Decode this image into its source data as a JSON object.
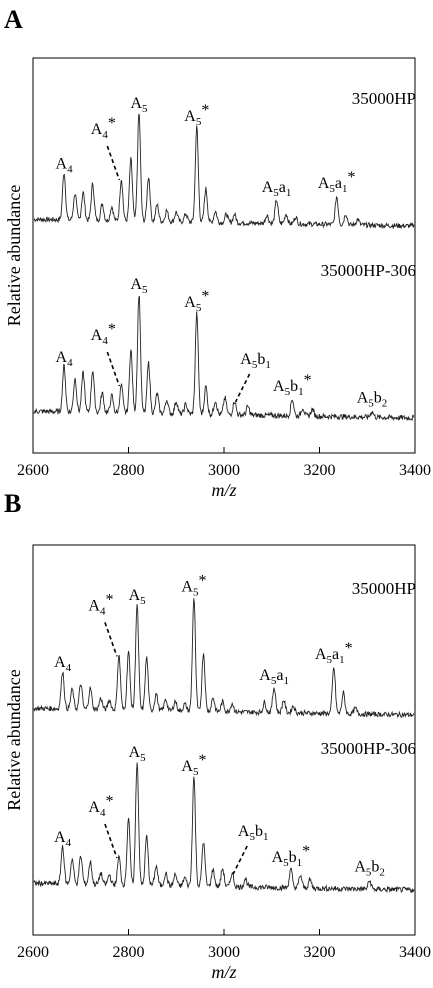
{
  "chart_data": [
    {
      "panel": "A",
      "type": "line",
      "xlabel": "m/z",
      "ylabel": "Relative abundance",
      "xlim": [
        2600,
        3400
      ],
      "xticks": [
        2600,
        2800,
        3000,
        3200,
        3400
      ],
      "grid": false,
      "series": [
        {
          "name": "35000HP",
          "peaks": [
            [
              2665,
              0.34
            ],
            [
              2688,
              0.19
            ],
            [
              2705,
              0.2
            ],
            [
              2725,
              0.26
            ],
            [
              2745,
              0.12
            ],
            [
              2765,
              0.1
            ],
            [
              2785,
              0.3
            ],
            [
              2805,
              0.44
            ],
            [
              2822,
              0.77
            ],
            [
              2842,
              0.32
            ],
            [
              2860,
              0.12
            ],
            [
              2880,
              0.08
            ],
            [
              2900,
              0.07
            ],
            [
              2920,
              0.06
            ],
            [
              2943,
              0.68
            ],
            [
              2962,
              0.24
            ],
            [
              2982,
              0.08
            ],
            [
              3005,
              0.06
            ],
            [
              3022,
              0.06
            ],
            [
              3090,
              0.06
            ],
            [
              3110,
              0.17
            ],
            [
              3130,
              0.07
            ],
            [
              3150,
              0.05
            ],
            [
              3236,
              0.2
            ],
            [
              3255,
              0.08
            ],
            [
              3280,
              0.04
            ]
          ],
          "annotations": [
            {
              "base": "A",
              "sub": "4",
              "sup": "",
              "x": 2665
            },
            {
              "base": "A",
              "sub": "4",
              "sup": "*",
              "x": 2785
            },
            {
              "base": "A",
              "sub": "5",
              "sup": "",
              "x": 2822
            },
            {
              "base": "A",
              "sub": "5",
              "sup": "*",
              "x": 2943
            },
            {
              "base": "A",
              "sub": "5",
              "base2": "a",
              "sub2": "1",
              "sup": "",
              "x": 3110
            },
            {
              "base": "A",
              "sub": "5",
              "base2": "a",
              "sub2": "1",
              "sup": "*",
              "x": 3236
            }
          ]
        },
        {
          "name": "35000HP-306",
          "peaks": [
            [
              2665,
              0.33
            ],
            [
              2688,
              0.24
            ],
            [
              2705,
              0.28
            ],
            [
              2725,
              0.3
            ],
            [
              2745,
              0.14
            ],
            [
              2765,
              0.12
            ],
            [
              2785,
              0.2
            ],
            [
              2805,
              0.45
            ],
            [
              2822,
              0.85
            ],
            [
              2842,
              0.36
            ],
            [
              2860,
              0.14
            ],
            [
              2880,
              0.1
            ],
            [
              2900,
              0.09
            ],
            [
              2920,
              0.07
            ],
            [
              2943,
              0.72
            ],
            [
              2962,
              0.2
            ],
            [
              2982,
              0.1
            ],
            [
              3002,
              0.12
            ],
            [
              3022,
              0.1
            ],
            [
              3050,
              0.06
            ],
            [
              3143,
              0.12
            ],
            [
              3165,
              0.06
            ],
            [
              3185,
              0.05
            ],
            [
              3310,
              0.04
            ]
          ],
          "annotations": [
            {
              "base": "A",
              "sub": "4",
              "sup": "",
              "x": 2665
            },
            {
              "base": "A",
              "sub": "4",
              "sup": "*",
              "x": 2785
            },
            {
              "base": "A",
              "sub": "5",
              "sup": "",
              "x": 2822
            },
            {
              "base": "A",
              "sub": "5",
              "sup": "*",
              "x": 2943
            },
            {
              "base": "A",
              "sub": "5",
              "base2": "b",
              "sub2": "1",
              "sup": "",
              "x": 3020
            },
            {
              "base": "A",
              "sub": "5",
              "base2": "b",
              "sub2": "1",
              "sup": "*",
              "x": 3143
            },
            {
              "base": "A",
              "sub": "5",
              "base2": "b",
              "sub2": "2",
              "sup": "",
              "x": 3310
            }
          ]
        }
      ]
    },
    {
      "panel": "B",
      "type": "line",
      "xlabel": "m/z",
      "ylabel": "Relative abundance",
      "xlim": [
        2600,
        3400
      ],
      "xticks": [
        2600,
        2800,
        3000,
        3200,
        3400
      ],
      "grid": false,
      "series": [
        {
          "name": "35000HP",
          "peaks": [
            [
              2662,
              0.27
            ],
            [
              2682,
              0.14
            ],
            [
              2700,
              0.18
            ],
            [
              2720,
              0.15
            ],
            [
              2742,
              0.08
            ],
            [
              2760,
              0.07
            ],
            [
              2780,
              0.39
            ],
            [
              2800,
              0.42
            ],
            [
              2818,
              0.75
            ],
            [
              2838,
              0.38
            ],
            [
              2858,
              0.12
            ],
            [
              2878,
              0.08
            ],
            [
              2898,
              0.07
            ],
            [
              2918,
              0.05
            ],
            [
              2937,
              0.81
            ],
            [
              2957,
              0.42
            ],
            [
              2977,
              0.1
            ],
            [
              2997,
              0.07
            ],
            [
              3017,
              0.06
            ],
            [
              3085,
              0.07
            ],
            [
              3105,
              0.18
            ],
            [
              3125,
              0.09
            ],
            [
              3145,
              0.05
            ],
            [
              3230,
              0.33
            ],
            [
              3250,
              0.15
            ],
            [
              3275,
              0.04
            ]
          ],
          "annotations": [
            {
              "base": "A",
              "sub": "4",
              "sup": "",
              "x": 2662
            },
            {
              "base": "A",
              "sub": "4",
              "sup": "*",
              "x": 2780
            },
            {
              "base": "A",
              "sub": "5",
              "sup": "",
              "x": 2818
            },
            {
              "base": "A",
              "sub": "5",
              "sup": "*",
              "x": 2937
            },
            {
              "base": "A",
              "sub": "5",
              "base2": "a",
              "sub2": "1",
              "sup": "",
              "x": 3105
            },
            {
              "base": "A",
              "sub": "5",
              "base2": "a",
              "sub2": "1",
              "sup": "*",
              "x": 3230
            }
          ]
        },
        {
          "name": "35000HP-306",
          "peaks": [
            [
              2662,
              0.27
            ],
            [
              2682,
              0.18
            ],
            [
              2700,
              0.2
            ],
            [
              2720,
              0.16
            ],
            [
              2742,
              0.08
            ],
            [
              2760,
              0.07
            ],
            [
              2780,
              0.2
            ],
            [
              2800,
              0.48
            ],
            [
              2818,
              0.88
            ],
            [
              2838,
              0.35
            ],
            [
              2858,
              0.14
            ],
            [
              2878,
              0.09
            ],
            [
              2898,
              0.08
            ],
            [
              2918,
              0.06
            ],
            [
              2937,
              0.78
            ],
            [
              2957,
              0.32
            ],
            [
              2977,
              0.12
            ],
            [
              2997,
              0.13
            ],
            [
              3017,
              0.1
            ],
            [
              3045,
              0.06
            ],
            [
              3140,
              0.13
            ],
            [
              3160,
              0.09
            ],
            [
              3180,
              0.06
            ],
            [
              3305,
              0.06
            ]
          ],
          "annotations": [
            {
              "base": "A",
              "sub": "4",
              "sup": "",
              "x": 2662
            },
            {
              "base": "A",
              "sub": "4",
              "sup": "*",
              "x": 2780
            },
            {
              "base": "A",
              "sub": "5",
              "sup": "",
              "x": 2818
            },
            {
              "base": "A",
              "sub": "5",
              "sup": "*",
              "x": 2937
            },
            {
              "base": "A",
              "sub": "5",
              "base2": "b",
              "sub2": "1",
              "sup": "",
              "x": 3015
            },
            {
              "base": "A",
              "sub": "5",
              "base2": "b",
              "sub2": "1",
              "sup": "*",
              "x": 3140
            },
            {
              "base": "A",
              "sub": "5",
              "base2": "b",
              "sub2": "2",
              "sup": "",
              "x": 3305
            }
          ]
        }
      ]
    }
  ]
}
